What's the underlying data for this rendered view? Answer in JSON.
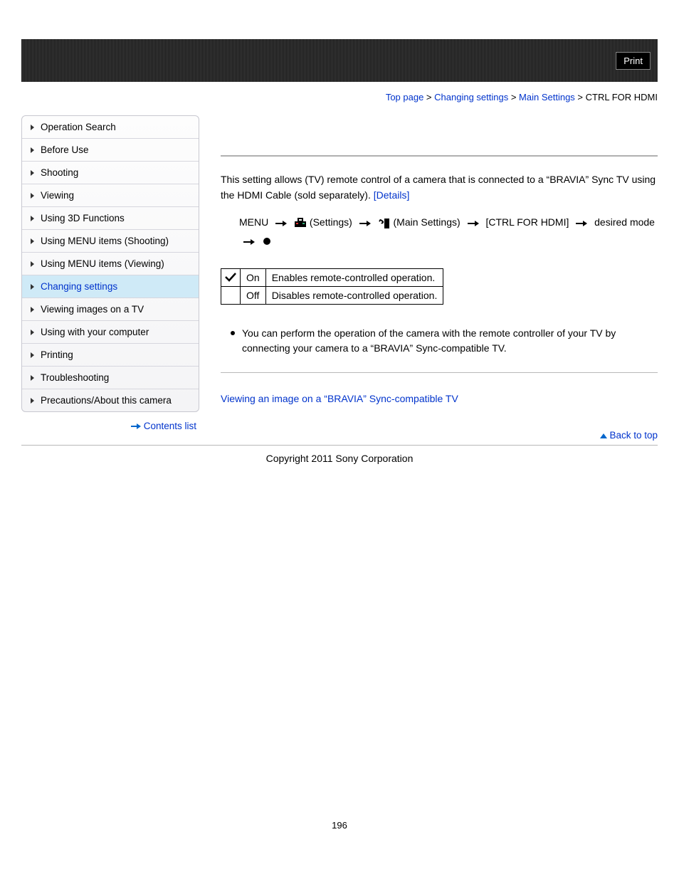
{
  "header": {
    "print_label": "Print"
  },
  "breadcrumb": {
    "items": [
      "Top page",
      "Changing settings",
      "Main Settings"
    ],
    "current": "CTRL FOR HDMI",
    "sep": " > "
  },
  "sidenav": {
    "items": [
      {
        "label": "Operation Search",
        "active": false
      },
      {
        "label": "Before Use",
        "active": false
      },
      {
        "label": "Shooting",
        "active": false
      },
      {
        "label": "Viewing",
        "active": false
      },
      {
        "label": "Using 3D Functions",
        "active": false
      },
      {
        "label": "Using MENU items (Shooting)",
        "active": false
      },
      {
        "label": "Using MENU items (Viewing)",
        "active": false
      },
      {
        "label": "Changing settings",
        "active": true
      },
      {
        "label": "Viewing images on a TV",
        "active": false
      },
      {
        "label": "Using with your computer",
        "active": false
      },
      {
        "label": "Printing",
        "active": false
      },
      {
        "label": "Troubleshooting",
        "active": false
      },
      {
        "label": "Precautions/About this camera",
        "active": false
      }
    ],
    "contents_list_label": "Contents list"
  },
  "main": {
    "intro_pre": "This setting allows (TV) remote control of a camera that is connected to a “BRAVIA” Sync TV using the HDMI Cable (sold separately). ",
    "details_label": "[Details]",
    "path": {
      "menu": "MENU",
      "settings": "(Settings)",
      "main_settings": "(Main Settings)",
      "ctrl": "[CTRL FOR HDMI]",
      "desired": "desired mode"
    },
    "table": {
      "rows": [
        {
          "check": true,
          "name": "On",
          "desc": "Enables remote-controlled operation."
        },
        {
          "check": false,
          "name": "Off",
          "desc": "Disables remote-controlled operation."
        }
      ]
    },
    "note": "You can perform the operation of the camera with the remote controller of your TV by connecting your camera to a “BRAVIA” Sync-compatible TV.",
    "related_link": "Viewing an image on a “BRAVIA” Sync-compatible TV",
    "back_to_top": "Back to top"
  },
  "footer": {
    "copyright": "Copyright 2011 Sony Corporation",
    "page_number": "196"
  },
  "colors": {
    "link": "#0033cc",
    "band_dark": "#1a1a1a",
    "active_bg": "#cfeaf7"
  }
}
